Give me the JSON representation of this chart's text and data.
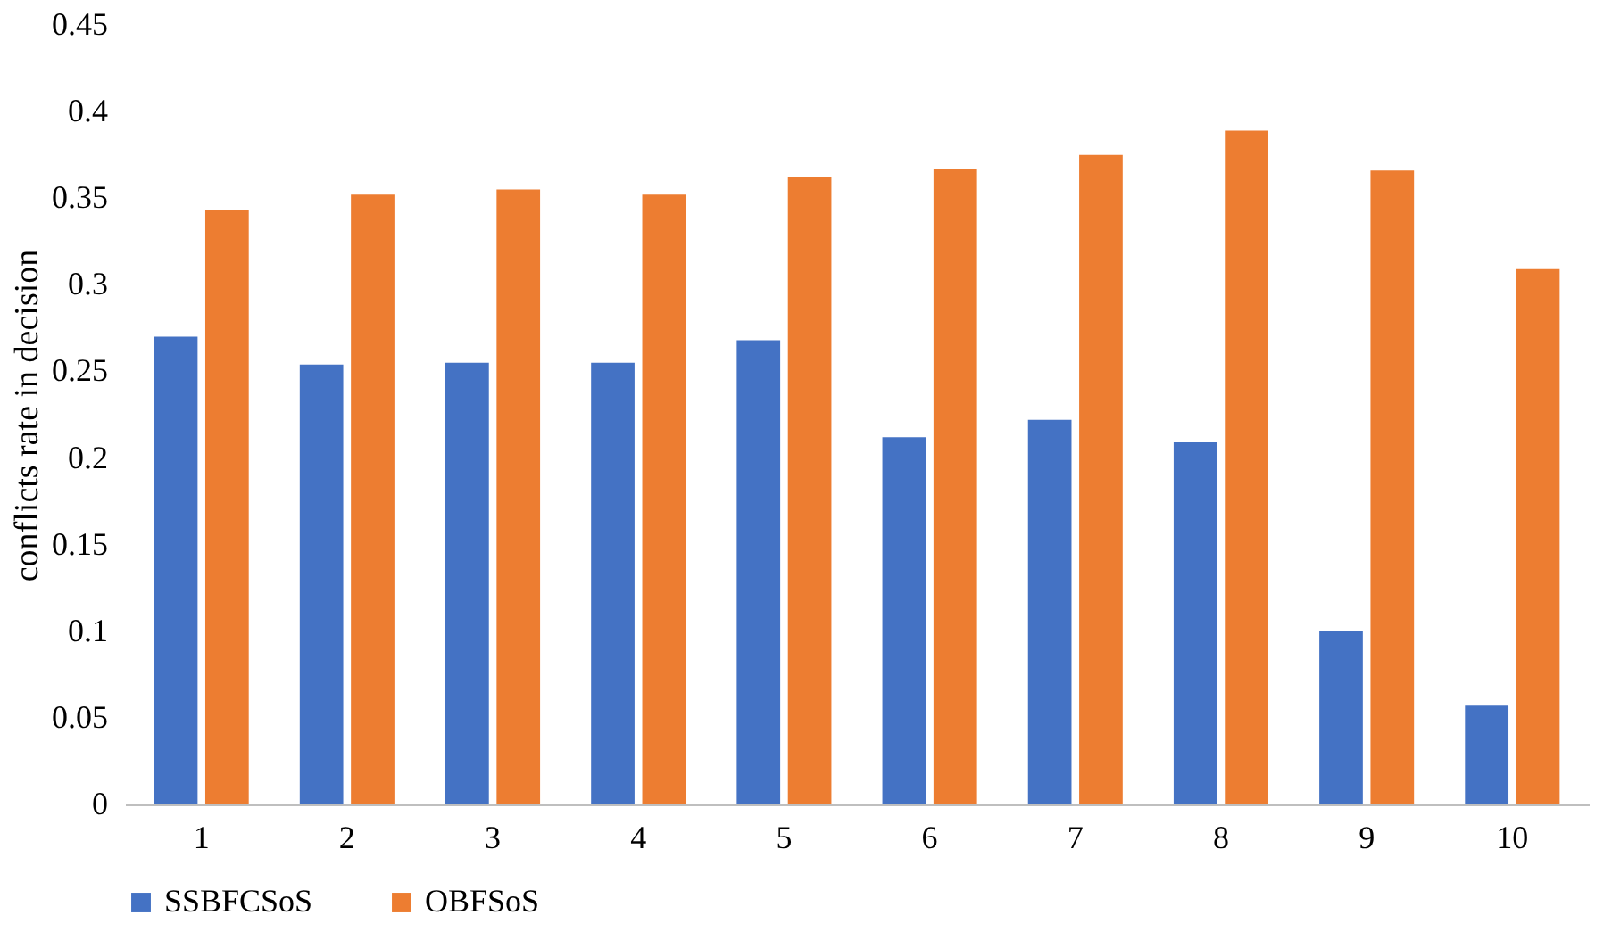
{
  "chart_data": {
    "type": "bar",
    "ylabel": "conflicts rate in decision",
    "categories": [
      "1",
      "2",
      "3",
      "4",
      "5",
      "6",
      "7",
      "8",
      "9",
      "10"
    ],
    "series": [
      {
        "name": "SSBFCSoS",
        "color": "#4472c4",
        "values": [
          0.27,
          0.254,
          0.255,
          0.255,
          0.268,
          0.212,
          0.222,
          0.209,
          0.1,
          0.057
        ]
      },
      {
        "name": "OBFSoS",
        "color": "#ed7d31",
        "values": [
          0.343,
          0.352,
          0.355,
          0.352,
          0.362,
          0.367,
          0.375,
          0.389,
          0.366,
          0.309
        ]
      }
    ],
    "ylim": [
      0,
      0.45
    ],
    "yticks": [
      0,
      0.05,
      0.1,
      0.15,
      0.2,
      0.25,
      0.3,
      0.35,
      0.4,
      0.45
    ],
    "grid": false,
    "legend": "bottom"
  }
}
